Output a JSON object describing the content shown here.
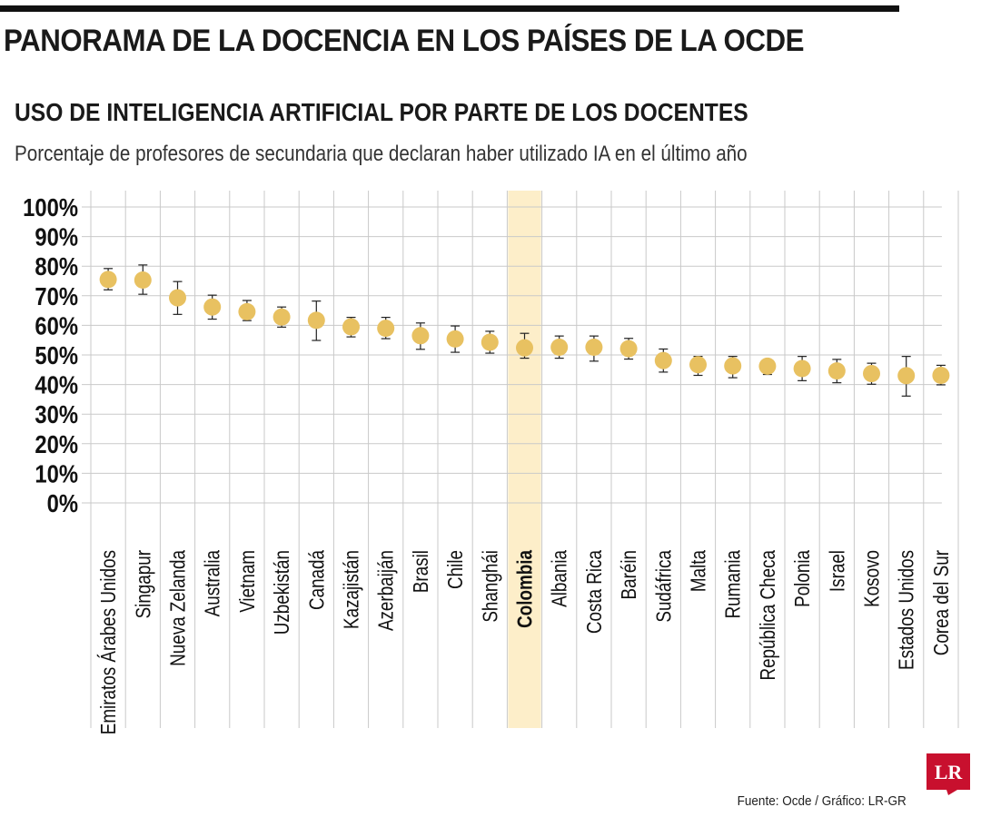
{
  "header": {
    "headline": "PANORAMA DE LA DOCENCIA EN LOS PAÍSES DE LA OCDE"
  },
  "chart_data": {
    "type": "scatter",
    "title": "USO DE INTELIGENCIA ARTIFICIAL POR PARTE DE LOS DOCENTES",
    "subtitle": "Porcentaje de profesores de secundaria que declaran haber utilizado IA en el último año",
    "xlabel": "",
    "ylabel": "",
    "ylim": [
      0,
      100
    ],
    "y_ticks": [
      "0%",
      "10%",
      "20%",
      "30%",
      "40%",
      "50%",
      "60%",
      "70%",
      "80%",
      "90%",
      "100%"
    ],
    "grid": true,
    "highlight": "Colombia",
    "point_color": "#e8c161",
    "highlight_color": "#fdeec9",
    "categories": [
      "Emiratos Árabes Unidos",
      "Singapur",
      "Nueva Zelanda",
      "Australia",
      "Vietnam",
      "Uzbekistán",
      "Canadá",
      "Kazajistán",
      "Azerbaiján",
      "Brasil",
      "Chile",
      "Shanghái",
      "Colombia",
      "Albania",
      "Costa Rica",
      "Baréin",
      "Sudáfrica",
      "Malta",
      "Rumania",
      "República Checa",
      "Polonia",
      "Israel",
      "Kosovo",
      "Estados Unidos",
      "Corea del Sur"
    ],
    "values": [
      75.5,
      75.3,
      69.3,
      66.2,
      64.6,
      62.8,
      61.7,
      59.5,
      59.0,
      56.5,
      55.4,
      54.3,
      52.4,
      52.6,
      52.6,
      52.1,
      48.1,
      46.7,
      46.3,
      46.2,
      45.4,
      44.6,
      43.7,
      43.0,
      43.1
    ],
    "error_low": [
      72.0,
      70.5,
      63.7,
      62.1,
      61.6,
      59.4,
      54.9,
      56.1,
      55.5,
      51.9,
      50.9,
      50.6,
      48.9,
      48.9,
      47.9,
      48.6,
      44.2,
      43.1,
      42.3,
      43.4,
      41.3,
      40.6,
      40.1,
      36.1,
      39.9
    ],
    "error_high": [
      79.2,
      80.4,
      74.8,
      70.2,
      68.4,
      66.2,
      68.2,
      62.7,
      62.7,
      60.8,
      59.8,
      58.0,
      57.3,
      56.4,
      56.4,
      55.6,
      52.0,
      49.5,
      49.5,
      48.4,
      49.5,
      48.5,
      47.2,
      49.5,
      46.5
    ]
  },
  "footer": {
    "source": "Fuente: Ocde / Gráfico: LR-GR",
    "logo_text": "LR"
  }
}
